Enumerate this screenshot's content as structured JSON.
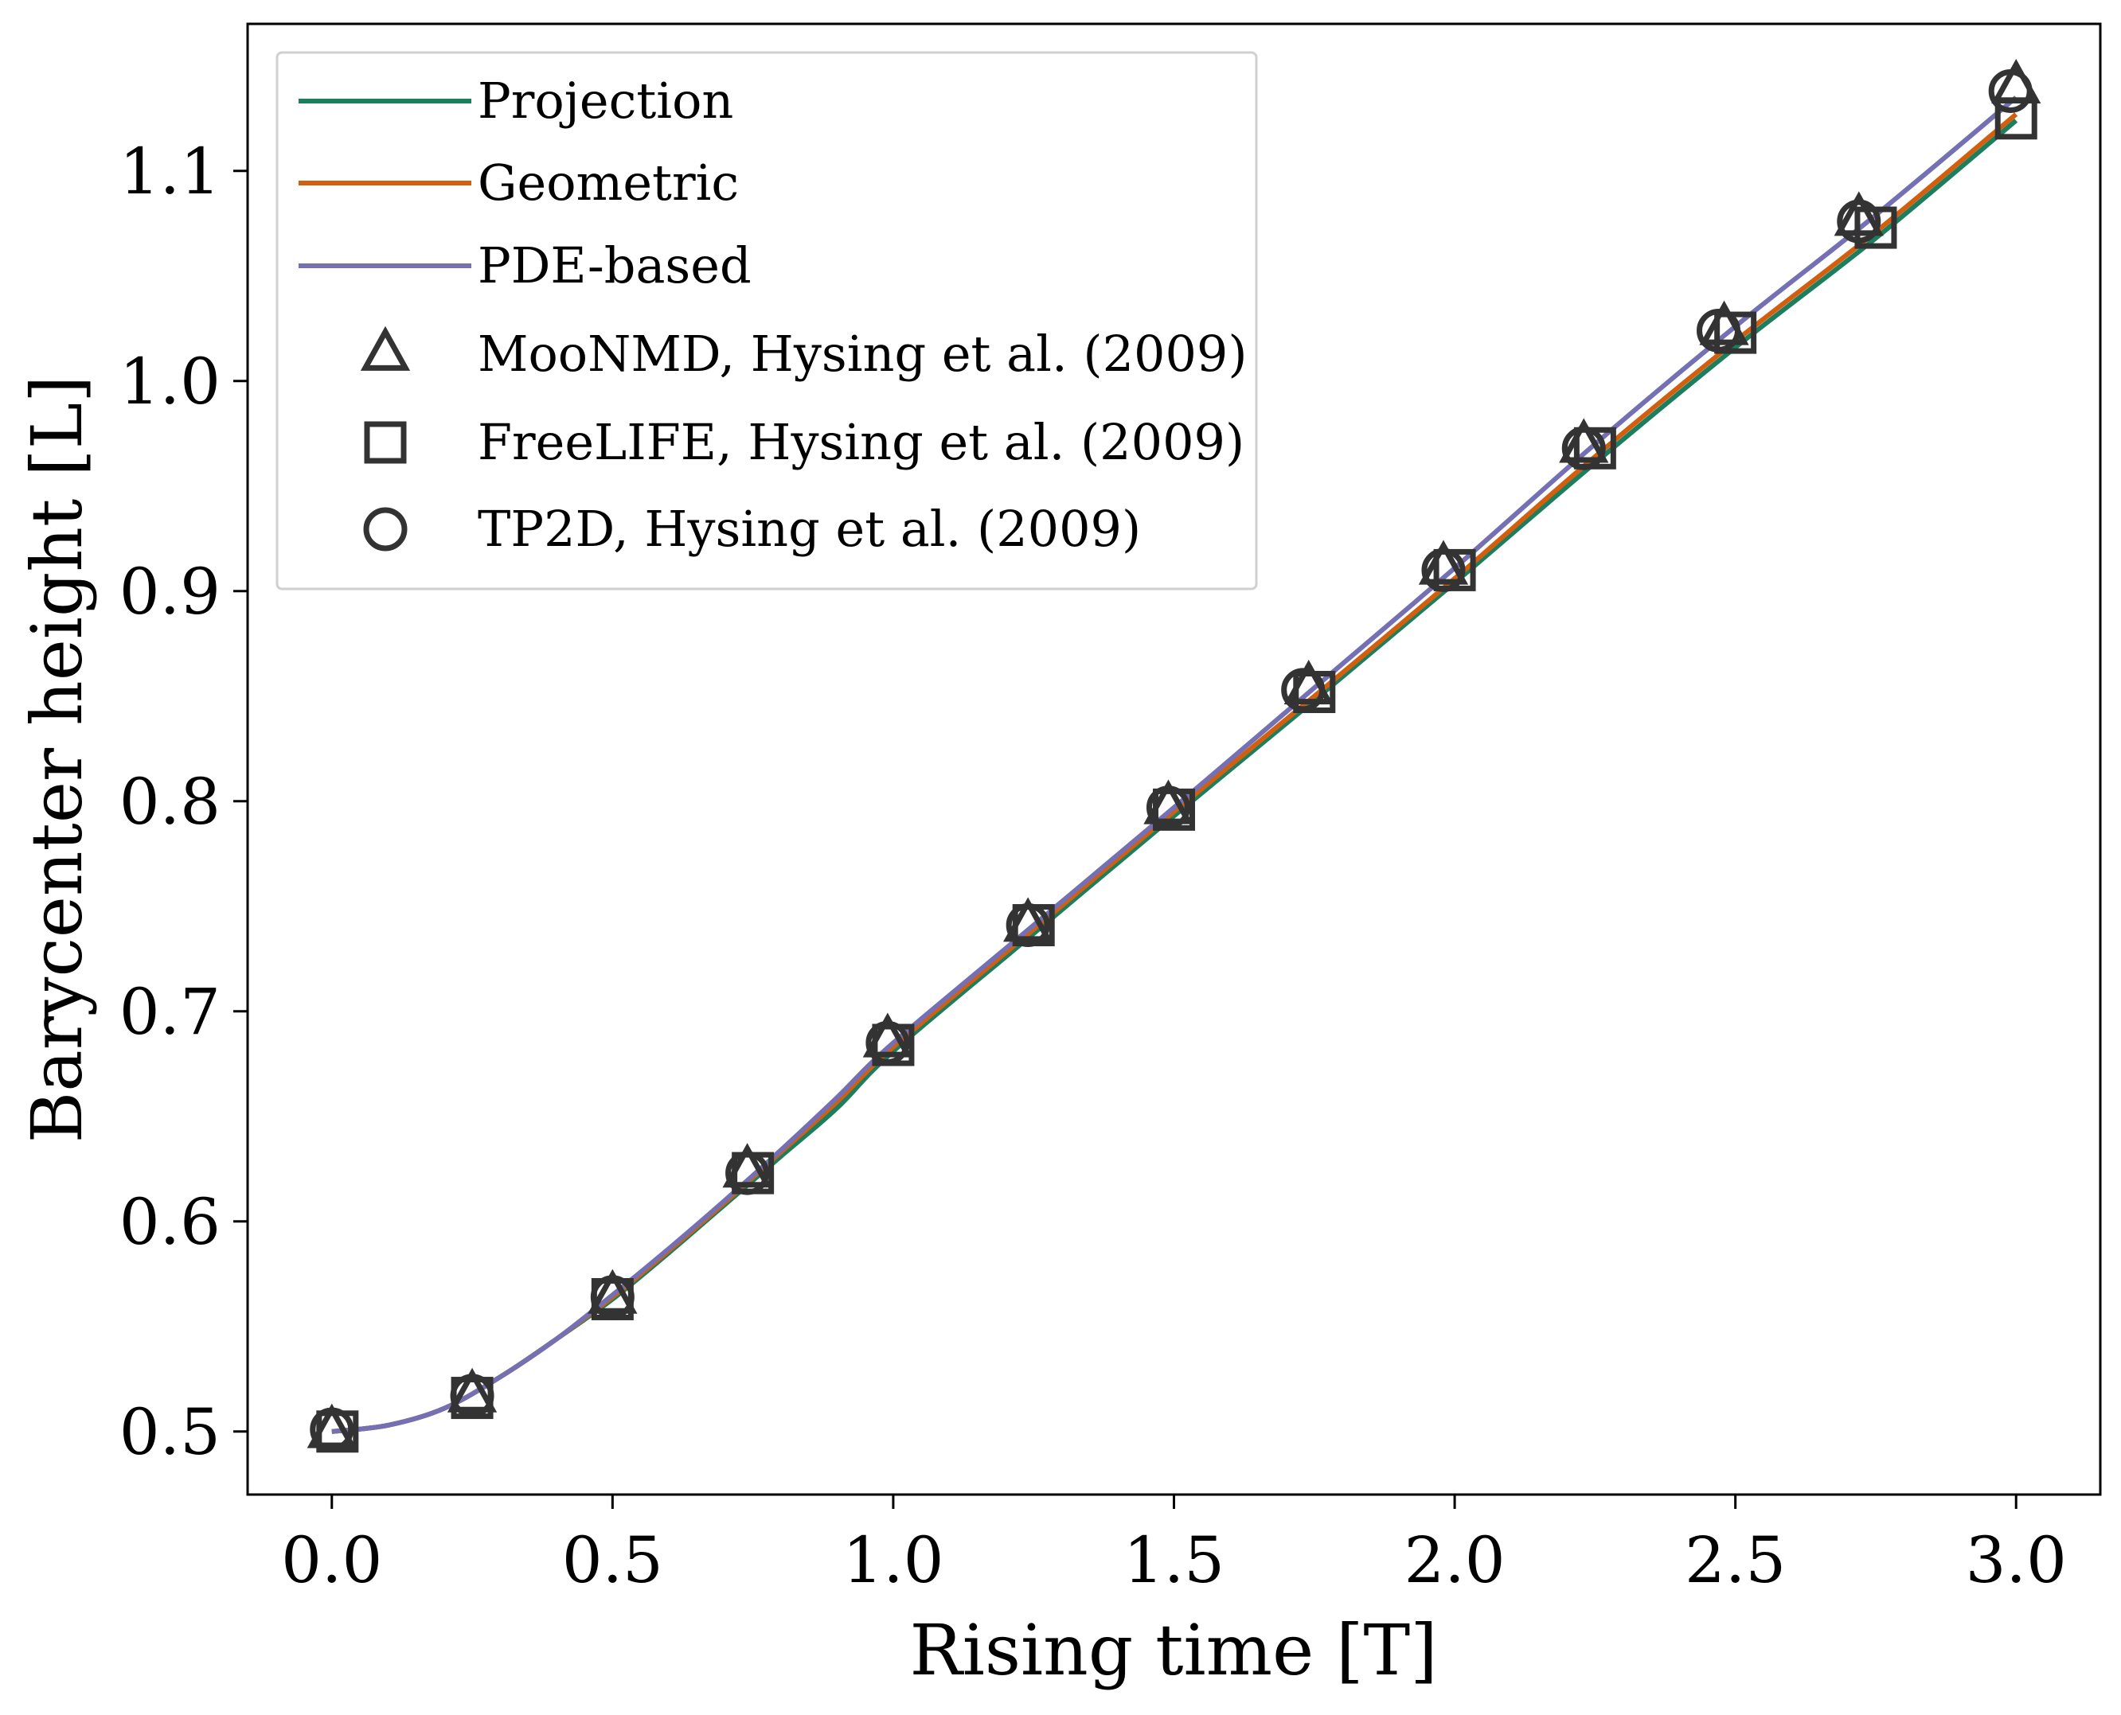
{
  "chart_data": {
    "type": "line",
    "xlabel": "Rising time [T]",
    "ylabel": "Barycenter height [L]",
    "xlim": [
      -0.15,
      3.15
    ],
    "ylim": [
      0.47,
      1.17
    ],
    "xticks": [
      "0.0",
      "0.5",
      "1.0",
      "1.5",
      "2.0",
      "2.5",
      "3.0"
    ],
    "yticks": [
      "0.5",
      "0.6",
      "0.7",
      "0.8",
      "0.9",
      "1.0",
      "1.1"
    ],
    "grid": false,
    "legend_position": "top-left",
    "series": [
      {
        "name": "Projection",
        "kind": "line",
        "color": "#1b7f5f",
        "x": [
          0,
          0.1,
          0.2,
          0.3,
          0.4,
          0.5,
          0.6,
          0.7,
          0.8,
          0.9,
          1.0,
          1.25,
          1.5,
          1.75,
          2.0,
          2.25,
          2.5,
          2.75,
          3.0
        ],
        "y": [
          0.5,
          0.503,
          0.511,
          0.526,
          0.544,
          0.563,
          0.585,
          0.608,
          0.631,
          0.654,
          0.681,
          0.737,
          0.793,
          0.848,
          0.904,
          0.961,
          1.016,
          1.068,
          1.124
        ]
      },
      {
        "name": "Geometric",
        "kind": "line",
        "color": "#d35f0e",
        "x": [
          0,
          0.1,
          0.2,
          0.3,
          0.4,
          0.5,
          0.6,
          0.7,
          0.8,
          0.9,
          1.0,
          1.25,
          1.5,
          1.75,
          2.0,
          2.25,
          2.5,
          2.75,
          3.0
        ],
        "y": [
          0.5,
          0.503,
          0.511,
          0.526,
          0.544,
          0.564,
          0.586,
          0.609,
          0.633,
          0.657,
          0.683,
          0.739,
          0.795,
          0.85,
          0.906,
          0.964,
          1.019,
          1.071,
          1.127
        ]
      },
      {
        "name": "PDE-based",
        "kind": "line",
        "color": "#7570b3",
        "x": [
          0,
          0.1,
          0.2,
          0.3,
          0.4,
          0.5,
          0.6,
          0.7,
          0.8,
          0.9,
          1.0,
          1.25,
          1.5,
          1.75,
          2.0,
          2.25,
          2.5,
          2.75,
          3.0
        ],
        "y": [
          0.5,
          0.503,
          0.511,
          0.526,
          0.544,
          0.565,
          0.587,
          0.61,
          0.634,
          0.659,
          0.685,
          0.741,
          0.797,
          0.854,
          0.911,
          0.97,
          1.026,
          1.079,
          1.135
        ]
      },
      {
        "name": "MooNMD, Hysing et al. (2009)",
        "kind": "marker",
        "marker": "triangle",
        "color": "#333333",
        "x": [
          0,
          0.25,
          0.5,
          0.74,
          0.99,
          1.24,
          1.49,
          1.74,
          1.98,
          2.23,
          2.48,
          2.72,
          3.0
        ],
        "y": [
          0.5,
          0.517,
          0.564,
          0.624,
          0.686,
          0.741,
          0.797,
          0.854,
          0.911,
          0.969,
          1.025,
          1.077,
          1.14
        ]
      },
      {
        "name": "FreeLIFE, Hysing et al. (2009)",
        "kind": "marker",
        "marker": "square",
        "color": "#333333",
        "x": [
          0.01,
          0.25,
          0.5,
          0.75,
          1.0,
          1.25,
          1.5,
          1.75,
          2.0,
          2.25,
          2.5,
          2.75,
          3.0
        ],
        "y": [
          0.5,
          0.516,
          0.563,
          0.623,
          0.684,
          0.741,
          0.796,
          0.852,
          0.91,
          0.968,
          1.023,
          1.073,
          1.125
        ]
      },
      {
        "name": "TP2D, Hysing et al. (2009)",
        "kind": "marker",
        "marker": "circle",
        "color": "#333333",
        "x": [
          0,
          0.25,
          0.5,
          0.74,
          0.99,
          1.24,
          1.49,
          1.73,
          1.98,
          2.23,
          2.47,
          2.72,
          2.99
        ],
        "y": [
          0.501,
          0.517,
          0.564,
          0.623,
          0.685,
          0.741,
          0.797,
          0.853,
          0.91,
          0.968,
          1.024,
          1.076,
          1.138
        ]
      }
    ]
  }
}
